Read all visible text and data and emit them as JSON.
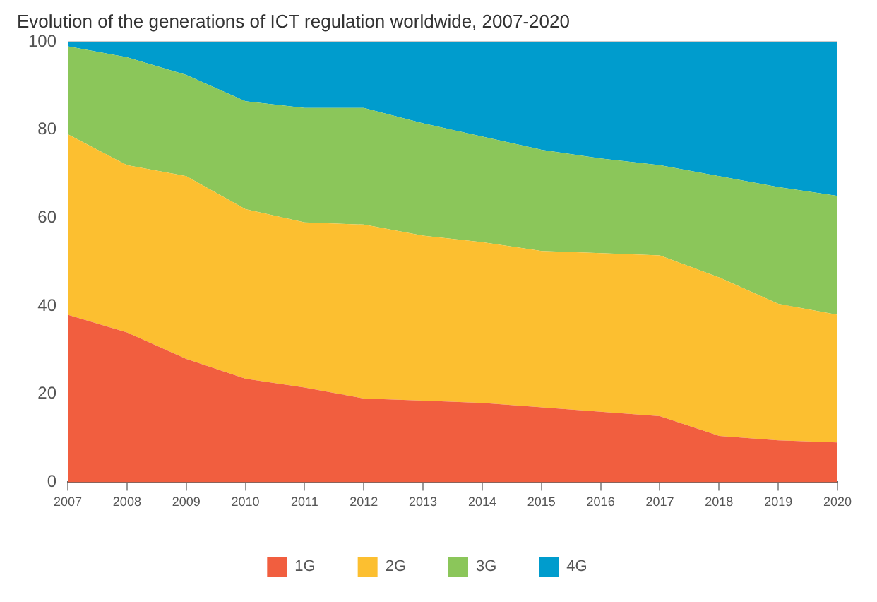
{
  "chart_data": {
    "type": "area",
    "title": "Evolution of the generations of ICT regulation worldwide, 2007-2020",
    "categories": [
      "2007",
      "2008",
      "2009",
      "2010",
      "2011",
      "2012",
      "2013",
      "2014",
      "2015",
      "2016",
      "2017",
      "2018",
      "2019",
      "2020"
    ],
    "stacked": true,
    "ylim": [
      0,
      100
    ],
    "yticks": [
      0,
      20,
      40,
      60,
      80,
      100
    ],
    "grid": "y",
    "legend": "bottom",
    "series": [
      {
        "name": "1G",
        "color": "#f15e3f",
        "values": [
          38,
          34,
          28,
          23.5,
          21.5,
          19,
          18.5,
          18,
          17,
          16,
          15,
          10.5,
          9.5,
          9
        ]
      },
      {
        "name": "2G",
        "color": "#fcbf30",
        "values": [
          41,
          38,
          41.5,
          38.5,
          37.5,
          39.5,
          37.5,
          36.5,
          35.5,
          36,
          36.5,
          36,
          31,
          29
        ]
      },
      {
        "name": "3G",
        "color": "#8bc65a",
        "values": [
          20,
          24.5,
          23,
          24.5,
          26,
          26.5,
          25.5,
          24,
          23,
          21.5,
          20.5,
          23,
          26.5,
          27
        ]
      },
      {
        "name": "4G",
        "color": "#009ccd",
        "values": [
          1,
          3.5,
          7.5,
          13.5,
          15,
          15,
          18.5,
          21.5,
          24.5,
          26.5,
          28,
          30.5,
          33,
          35
        ]
      }
    ]
  }
}
